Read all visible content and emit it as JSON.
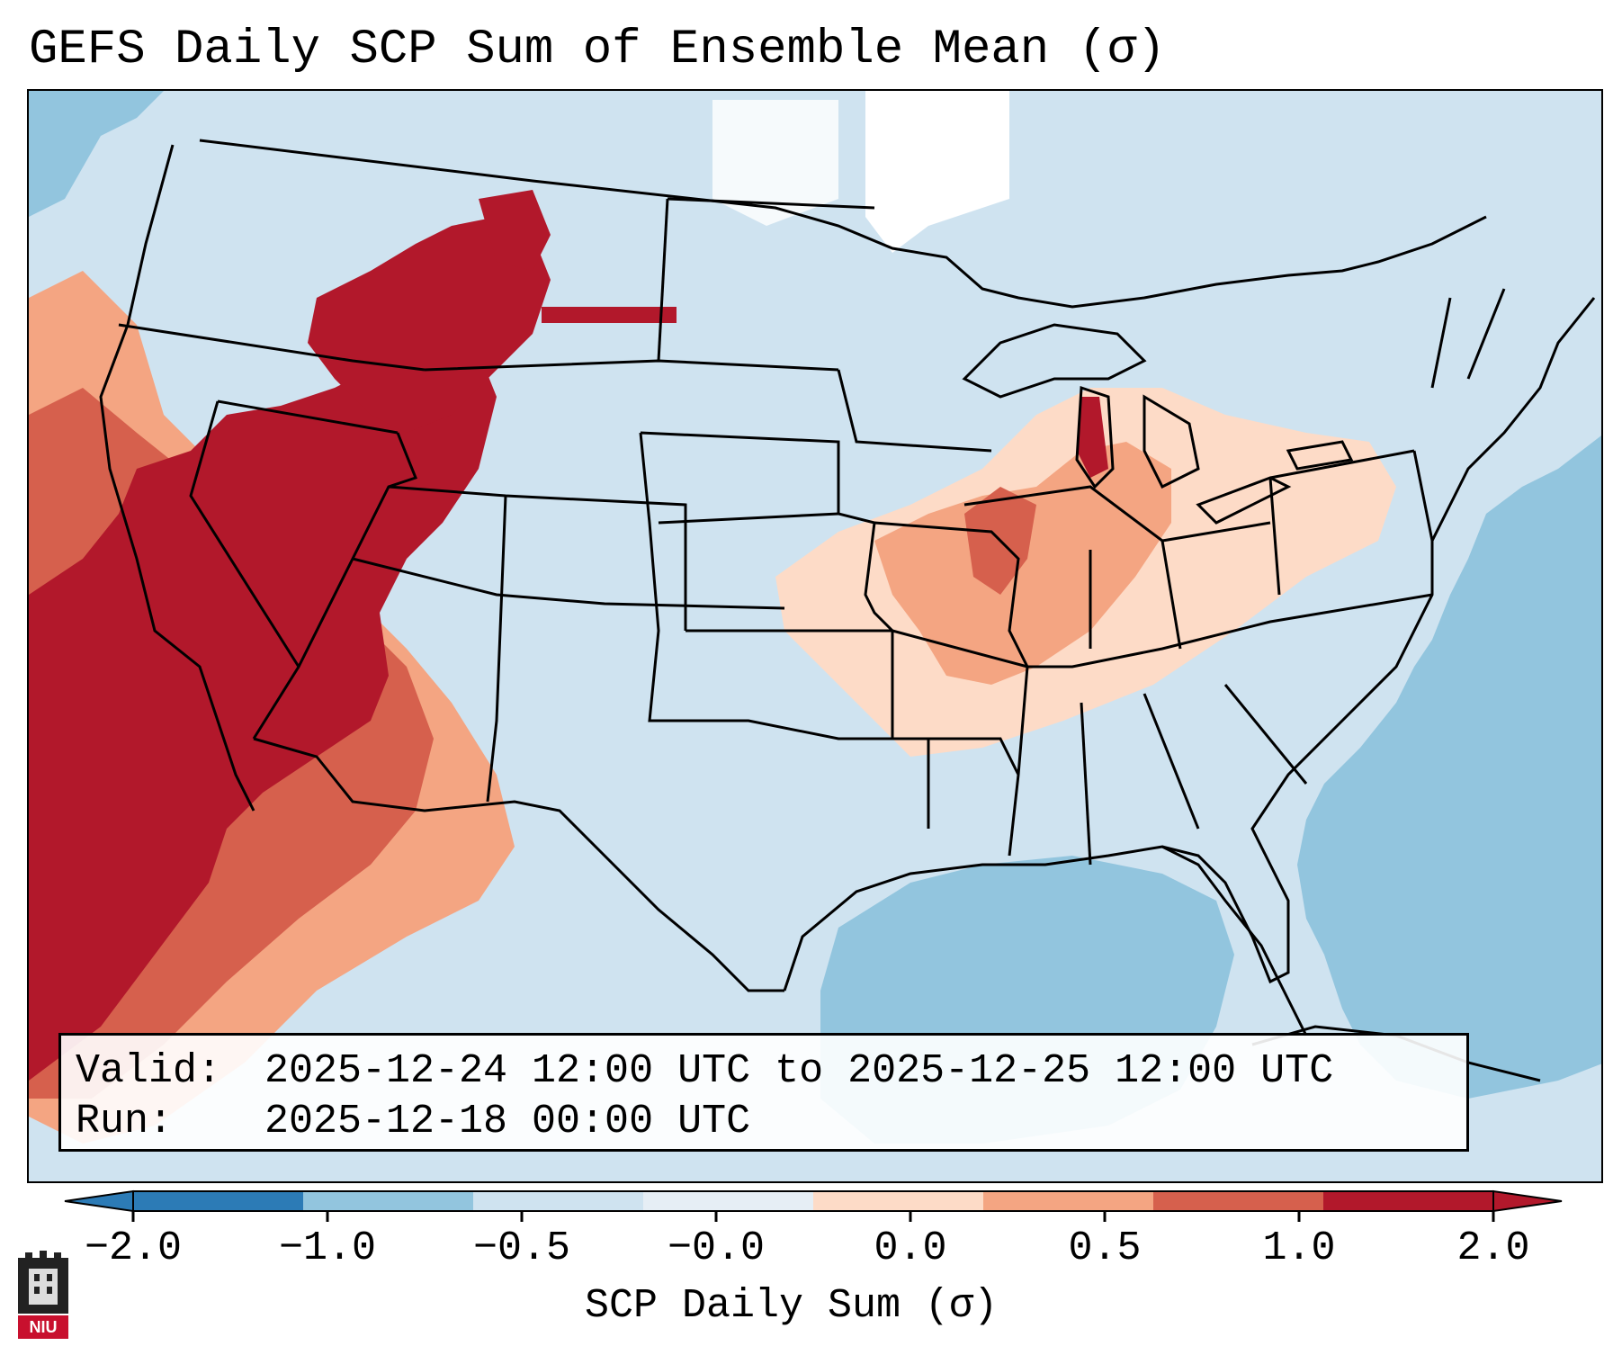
{
  "title": "GEFS Daily SCP Sum of Ensemble Mean (σ)",
  "info": {
    "valid_label": "Valid:",
    "valid_value": "2025-12-24 12:00 UTC to 2025-12-25 12:00 UTC",
    "run_label": "Run:",
    "run_value": "2025-12-18 00:00 UTC"
  },
  "colorbar": {
    "title": "SCP Daily Sum (σ)",
    "ticks": [
      "−2.0",
      "−1.0",
      "−0.5",
      "−0.0",
      "0.0",
      "0.5",
      "1.0",
      "2.0"
    ],
    "colors": [
      "#2c7bb6",
      "#92c5de",
      "#cfe3f0",
      "#e6eef5",
      "#fddbc7",
      "#f4a582",
      "#d6604d",
      "#b2182b"
    ],
    "extend": "both"
  },
  "map": {
    "region": "Continental United States",
    "colors": {
      "ocean_neg": "#92c5de",
      "land_neutral": "#cfe3f0",
      "pos_low": "#fddbc7",
      "pos_mid": "#f4a582",
      "pos_high": "#d6604d",
      "pos_max": "#b2182b",
      "missing": "#ffffff"
    }
  },
  "logo": {
    "label": "NIU",
    "name": "niu-logo"
  }
}
